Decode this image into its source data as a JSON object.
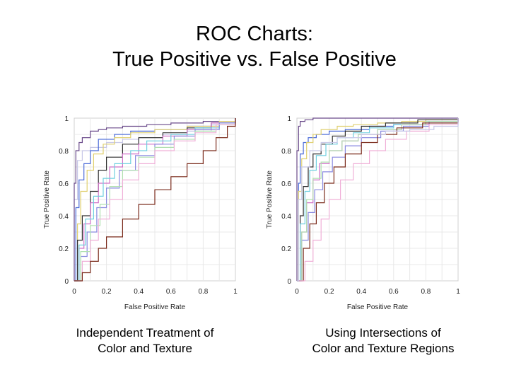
{
  "slide": {
    "title_line1": "ROC Charts:",
    "title_line2": "True Positive vs. False Positive"
  },
  "captions": {
    "left": [
      "Independent Treatment of",
      "Color and Texture"
    ],
    "right": [
      "Using Intersections of",
      "Color and Texture Regions"
    ]
  },
  "chart_data": [
    {
      "type": "line",
      "xlabel": "False Positive Rate",
      "ylabel": "True Positive Rate",
      "xlim": [
        0,
        1
      ],
      "ylim": [
        0,
        1
      ],
      "xticks": [
        "0",
        "0.2",
        "0.4",
        "0.6",
        "0.8",
        "1"
      ],
      "yticks": [
        "0",
        "0.2",
        "0.4",
        "0.6",
        "0.8",
        "1"
      ],
      "grid": true,
      "series": [
        {
          "color": "#c8c8e8",
          "x": [
            0,
            0,
            0.02,
            0.05,
            0.1,
            0.2,
            0.3,
            0.4,
            0.55,
            0.7,
            0.85,
            1
          ],
          "y": [
            0,
            0.5,
            0.74,
            0.8,
            0.82,
            0.85,
            0.87,
            0.88,
            0.9,
            0.92,
            0.96,
            1
          ]
        },
        {
          "color": "#6a4a8a",
          "x": [
            0,
            0,
            0.01,
            0.03,
            0.05,
            0.1,
            0.15,
            0.2,
            0.3,
            0.45,
            0.6,
            0.8,
            1
          ],
          "y": [
            0,
            0.6,
            0.8,
            0.85,
            0.88,
            0.92,
            0.93,
            0.94,
            0.95,
            0.96,
            0.97,
            0.98,
            1
          ]
        },
        {
          "color": "#4a6ad8",
          "x": [
            0,
            0.01,
            0.03,
            0.06,
            0.1,
            0.15,
            0.25,
            0.35,
            0.5,
            0.7,
            0.9,
            1
          ],
          "y": [
            0,
            0.45,
            0.62,
            0.72,
            0.8,
            0.87,
            0.9,
            0.92,
            0.93,
            0.95,
            0.97,
            1
          ]
        },
        {
          "color": "#e0d070",
          "x": [
            0,
            0.02,
            0.04,
            0.08,
            0.12,
            0.18,
            0.25,
            0.35,
            0.5,
            0.7,
            0.9,
            1
          ],
          "y": [
            0,
            0.35,
            0.55,
            0.68,
            0.78,
            0.84,
            0.88,
            0.91,
            0.93,
            0.95,
            0.98,
            1
          ]
        },
        {
          "color": "#303030",
          "x": [
            0,
            0.02,
            0.05,
            0.1,
            0.15,
            0.2,
            0.3,
            0.4,
            0.55,
            0.7,
            0.85,
            1
          ],
          "y": [
            0,
            0.25,
            0.4,
            0.55,
            0.68,
            0.76,
            0.84,
            0.88,
            0.91,
            0.94,
            0.97,
            1
          ]
        },
        {
          "color": "#d070c8",
          "x": [
            0,
            0.03,
            0.06,
            0.1,
            0.15,
            0.22,
            0.3,
            0.4,
            0.55,
            0.7,
            0.85,
            1
          ],
          "y": [
            0,
            0.2,
            0.35,
            0.48,
            0.6,
            0.7,
            0.78,
            0.84,
            0.89,
            0.93,
            0.97,
            1
          ]
        },
        {
          "color": "#70d0e0",
          "x": [
            0,
            0.03,
            0.07,
            0.12,
            0.18,
            0.25,
            0.35,
            0.45,
            0.6,
            0.75,
            0.9,
            1
          ],
          "y": [
            0,
            0.22,
            0.38,
            0.52,
            0.63,
            0.72,
            0.8,
            0.86,
            0.9,
            0.94,
            0.97,
            1
          ]
        },
        {
          "color": "#8a8ae0",
          "x": [
            0,
            0.04,
            0.08,
            0.14,
            0.2,
            0.28,
            0.38,
            0.5,
            0.62,
            0.75,
            0.9,
            1
          ],
          "y": [
            0,
            0.15,
            0.3,
            0.45,
            0.57,
            0.68,
            0.77,
            0.84,
            0.89,
            0.93,
            0.97,
            1
          ]
        },
        {
          "color": "#b0e0b0",
          "x": [
            0,
            0.04,
            0.1,
            0.16,
            0.22,
            0.3,
            0.4,
            0.5,
            0.62,
            0.75,
            0.88,
            1
          ],
          "y": [
            0,
            0.18,
            0.34,
            0.47,
            0.58,
            0.68,
            0.76,
            0.82,
            0.87,
            0.92,
            0.96,
            1
          ]
        },
        {
          "color": "#f0b0d8",
          "x": [
            0,
            0.05,
            0.1,
            0.15,
            0.22,
            0.3,
            0.4,
            0.5,
            0.62,
            0.75,
            0.88,
            1
          ],
          "y": [
            0,
            0.12,
            0.25,
            0.38,
            0.5,
            0.62,
            0.72,
            0.8,
            0.86,
            0.91,
            0.96,
            1
          ]
        },
        {
          "color": "#7a2a1a",
          "x": [
            0,
            0.05,
            0.1,
            0.15,
            0.2,
            0.3,
            0.4,
            0.5,
            0.6,
            0.7,
            0.8,
            0.88,
            0.95,
            1
          ],
          "y": [
            0,
            0.05,
            0.12,
            0.2,
            0.27,
            0.38,
            0.47,
            0.56,
            0.64,
            0.72,
            0.8,
            0.88,
            0.95,
            1
          ]
        }
      ]
    },
    {
      "type": "line",
      "xlabel": "False Positive Rate",
      "ylabel": "True Positive Rate",
      "xlim": [
        0,
        1
      ],
      "ylim": [
        0,
        1
      ],
      "xticks": [
        "0",
        "0.2",
        "0.4",
        "0.6",
        "0.8",
        "1"
      ],
      "yticks": [
        "0",
        "0.2",
        "0.4",
        "0.6",
        "0.8",
        "1"
      ],
      "grid": true,
      "series": [
        {
          "color": "#6a4a8a",
          "x": [
            0,
            0,
            0.01,
            0.02,
            0.05,
            0.1,
            0.2,
            0.35,
            0.5,
            0.7,
            1
          ],
          "y": [
            0,
            0.8,
            0.95,
            0.98,
            0.99,
            1,
            1,
            1,
            1,
            1,
            1
          ]
        },
        {
          "color": "#4a6ad8",
          "x": [
            0,
            0.01,
            0.02,
            0.04,
            0.07,
            0.12,
            0.2,
            0.3,
            0.45,
            0.6,
            0.8,
            1
          ],
          "y": [
            0,
            0.6,
            0.78,
            0.85,
            0.88,
            0.9,
            0.92,
            0.93,
            0.95,
            0.96,
            0.98,
            1
          ]
        },
        {
          "color": "#e0d070",
          "x": [
            0,
            0.01,
            0.03,
            0.06,
            0.1,
            0.15,
            0.25,
            0.35,
            0.5,
            0.65,
            0.8,
            1
          ],
          "y": [
            0,
            0.55,
            0.75,
            0.85,
            0.9,
            0.93,
            0.95,
            0.96,
            0.97,
            0.98,
            0.99,
            1
          ]
        },
        {
          "color": "#303030",
          "x": [
            0,
            0.02,
            0.04,
            0.07,
            0.1,
            0.15,
            0.22,
            0.3,
            0.4,
            0.55,
            0.75,
            1
          ],
          "y": [
            0,
            0.4,
            0.58,
            0.7,
            0.78,
            0.84,
            0.89,
            0.92,
            0.95,
            0.97,
            0.99,
            1
          ]
        },
        {
          "color": "#70d0e0",
          "x": [
            0,
            0.02,
            0.05,
            0.08,
            0.12,
            0.18,
            0.25,
            0.35,
            0.45,
            0.6,
            0.8,
            1
          ],
          "y": [
            0,
            0.35,
            0.55,
            0.68,
            0.77,
            0.84,
            0.88,
            0.91,
            0.94,
            0.96,
            0.98,
            1
          ]
        },
        {
          "color": "#d070c8",
          "x": [
            0,
            0.03,
            0.06,
            0.1,
            0.14,
            0.2,
            0.28,
            0.38,
            0.5,
            0.65,
            0.82,
            1
          ],
          "y": [
            0,
            0.3,
            0.48,
            0.62,
            0.72,
            0.8,
            0.86,
            0.9,
            0.93,
            0.96,
            0.98,
            1
          ]
        },
        {
          "color": "#8a8ae0",
          "x": [
            0,
            0.03,
            0.07,
            0.11,
            0.16,
            0.22,
            0.3,
            0.4,
            0.52,
            0.66,
            0.82,
            1
          ],
          "y": [
            0,
            0.25,
            0.42,
            0.56,
            0.67,
            0.76,
            0.83,
            0.88,
            0.92,
            0.95,
            0.98,
            1
          ]
        },
        {
          "color": "#b0e0b0",
          "x": [
            0,
            0.03,
            0.06,
            0.1,
            0.15,
            0.2,
            0.28,
            0.38,
            0.5,
            0.65,
            0.8,
            1
          ],
          "y": [
            0,
            0.3,
            0.5,
            0.63,
            0.73,
            0.8,
            0.86,
            0.9,
            0.93,
            0.96,
            0.98,
            1
          ]
        },
        {
          "color": "#7a2a1a",
          "x": [
            0,
            0.04,
            0.08,
            0.12,
            0.17,
            0.23,
            0.3,
            0.4,
            0.5,
            0.62,
            0.78,
            1
          ],
          "y": [
            0,
            0.2,
            0.35,
            0.48,
            0.6,
            0.7,
            0.78,
            0.85,
            0.9,
            0.94,
            0.97,
            1
          ]
        },
        {
          "color": "#f0b0d8",
          "x": [
            0,
            0.05,
            0.1,
            0.15,
            0.2,
            0.27,
            0.35,
            0.45,
            0.55,
            0.68,
            0.82,
            1
          ],
          "y": [
            0,
            0.12,
            0.25,
            0.38,
            0.5,
            0.62,
            0.72,
            0.8,
            0.87,
            0.92,
            0.96,
            1
          ]
        },
        {
          "color": "#c8c8e8",
          "x": [
            0,
            0.01,
            0.03,
            0.08,
            0.15,
            0.25,
            0.4,
            0.55,
            0.7,
            0.85,
            1
          ],
          "y": [
            0,
            0.5,
            0.7,
            0.8,
            0.85,
            0.88,
            0.9,
            0.92,
            0.93,
            0.95,
            1
          ]
        }
      ]
    }
  ]
}
